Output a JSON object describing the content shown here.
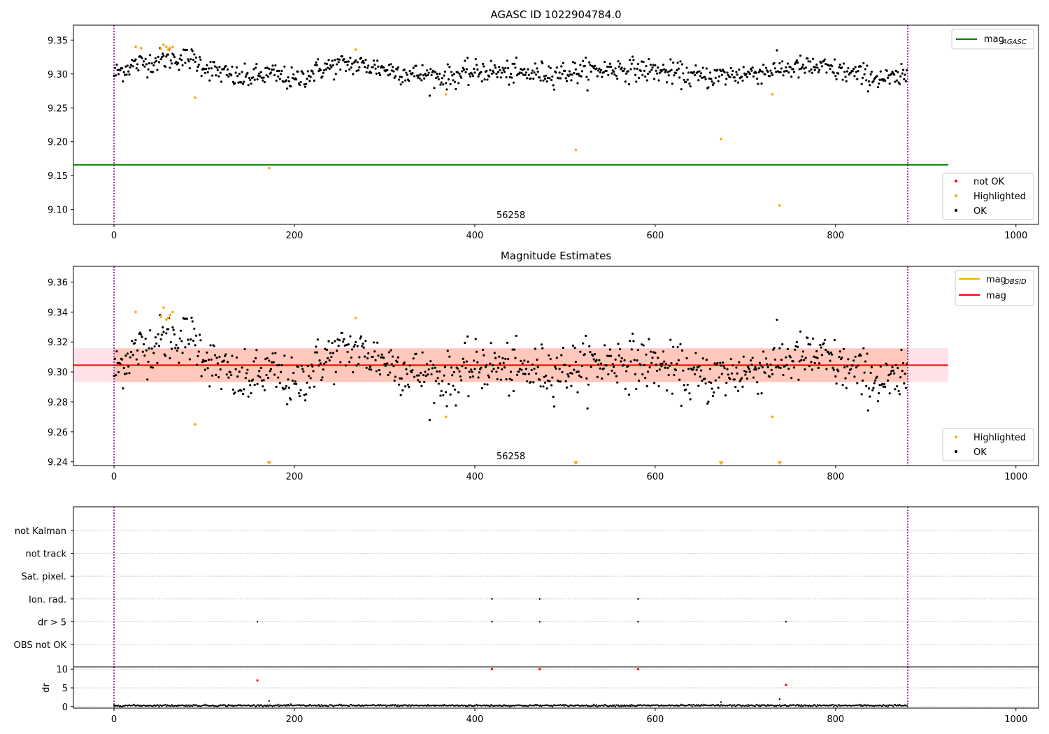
{
  "chart_data": [
    {
      "type": "scatter",
      "title": "AGASC ID 1022904784.0",
      "xlim": [
        -45,
        1025
      ],
      "ylim": [
        9.078,
        9.372
      ],
      "xticks": [
        0,
        200,
        400,
        600,
        800,
        1000
      ],
      "yticks": [
        9.1,
        9.15,
        9.2,
        9.25,
        9.3,
        9.35
      ],
      "ytick_labels": [
        "9.10",
        "9.15",
        "9.20",
        "9.25",
        "9.30",
        "9.35"
      ],
      "obsid_lines": [
        0,
        880
      ],
      "obsid_label": "56258",
      "obsid_label_x": 440,
      "mag_agasc": 9.166,
      "mag_agasc_xrange": [
        -45,
        925
      ],
      "legend_lines": [
        "mag",
        "AGASC"
      ],
      "legend_markers": [
        "not OK",
        "Highlighted",
        "OK"
      ],
      "ok_points": {
        "n": 880,
        "segments": [
          [
            0,
            9.3
          ],
          [
            20,
            9.313
          ],
          [
            60,
            9.323
          ],
          [
            85,
            9.323
          ],
          [
            110,
            9.305
          ],
          [
            140,
            9.293
          ],
          [
            175,
            9.3
          ],
          [
            200,
            9.29
          ],
          [
            230,
            9.308
          ],
          [
            260,
            9.315
          ],
          [
            290,
            9.31
          ],
          [
            330,
            9.3
          ],
          [
            370,
            9.295
          ],
          [
            410,
            9.305
          ],
          [
            450,
            9.3
          ],
          [
            500,
            9.302
          ],
          [
            560,
            9.308
          ],
          [
            600,
            9.305
          ],
          [
            650,
            9.295
          ],
          [
            700,
            9.3
          ],
          [
            740,
            9.308
          ],
          [
            780,
            9.31
          ],
          [
            820,
            9.3
          ],
          [
            860,
            9.292
          ],
          [
            880,
            9.295
          ]
        ],
        "noise": 0.0085
      },
      "highlighted_points": [
        [
          24,
          9.34
        ],
        [
          30,
          9.338
        ],
        [
          52,
          9.337
        ],
        [
          55,
          9.343
        ],
        [
          58,
          9.34
        ],
        [
          60,
          9.336
        ],
        [
          62,
          9.338
        ],
        [
          65,
          9.34
        ],
        [
          90,
          9.265
        ],
        [
          172,
          9.161
        ],
        [
          268,
          9.336
        ],
        [
          368,
          9.27
        ],
        [
          512,
          9.188
        ],
        [
          673,
          9.204
        ],
        [
          730,
          9.27
        ],
        [
          738,
          9.106
        ]
      ]
    },
    {
      "type": "scatter",
      "title": "Magnitude Estimates",
      "xlim": [
        -45,
        1025
      ],
      "ylim": [
        9.2375,
        9.3705
      ],
      "xticks": [
        0,
        200,
        400,
        600,
        800,
        1000
      ],
      "yticks": [
        9.24,
        9.26,
        9.28,
        9.3,
        9.32,
        9.34,
        9.36
      ],
      "ytick_labels": [
        "9.24",
        "9.26",
        "9.28",
        "9.30",
        "9.32",
        "9.34",
        "9.36"
      ],
      "obsid_lines": [
        0,
        880
      ],
      "obsid_label": "56258",
      "obsid_label_x": 440,
      "mag": 9.3045,
      "mag_band": [
        9.2932,
        9.3158
      ],
      "mag_obsid_band": [
        9.2932,
        9.3158
      ],
      "mag_xrange": [
        -45,
        925
      ],
      "legend_lines": [
        "mag",
        "OBSID",
        "mag"
      ],
      "legend_markers": [
        "Highlighted",
        "OK"
      ],
      "offscale_points_x": [
        172,
        512,
        673,
        738
      ],
      "highlighted_points": [
        [
          24,
          9.34
        ],
        [
          52,
          9.337
        ],
        [
          55,
          9.343
        ],
        [
          58,
          9.335
        ],
        [
          60,
          9.336
        ],
        [
          62,
          9.338
        ],
        [
          65,
          9.34
        ],
        [
          90,
          9.265
        ],
        [
          268,
          9.336
        ],
        [
          368,
          9.27
        ],
        [
          730,
          9.27
        ]
      ]
    },
    {
      "type": "scatter",
      "xlim": [
        -45,
        1025
      ],
      "xticks": [
        0,
        200,
        400,
        600,
        800,
        1000
      ],
      "flag_categories": [
        "not Kalman",
        "not track",
        "Sat. pixel.",
        "Ion. rad.",
        "dr > 5",
        "OBS not OK"
      ],
      "flag_points": {
        "Ion. rad.": [
          419,
          472,
          581
        ],
        "dr > 5": [
          159,
          419,
          472,
          581,
          745
        ]
      },
      "obsid_lines": [
        0,
        880
      ]
    },
    {
      "type": "scatter",
      "xlim": [
        -45,
        1025
      ],
      "ylim": [
        -0.4,
        10.6
      ],
      "xticks": [
        0,
        200,
        400,
        600,
        800,
        1000
      ],
      "yticks": [
        0,
        5,
        10
      ],
      "ytick_labels": [
        "0",
        "5",
        "10"
      ],
      "ylabel": "dr",
      "obsid_lines": [
        0,
        880
      ],
      "dr_red_points": [
        [
          159,
          7.0
        ],
        [
          419,
          10.0
        ],
        [
          472,
          10.0
        ],
        [
          581,
          10.0
        ],
        [
          745,
          5.8
        ]
      ],
      "dr_ok_points": [
        [
          172,
          1.5
        ],
        [
          673,
          1.2
        ],
        [
          738,
          2.0
        ]
      ],
      "dr_baseline": 0.3
    }
  ],
  "colors": {
    "ok": "#000000",
    "not_ok": "#ff0000",
    "highlighted": "#ffa500",
    "agasc_line": "#008000",
    "mag_line": "#ff0000",
    "obsid_line": "#ffa500",
    "obsid_vline": "#800080",
    "band_mag": "#ffc0cb",
    "band_obsid": "#ffa07a",
    "grid": "#b0b0b0"
  }
}
